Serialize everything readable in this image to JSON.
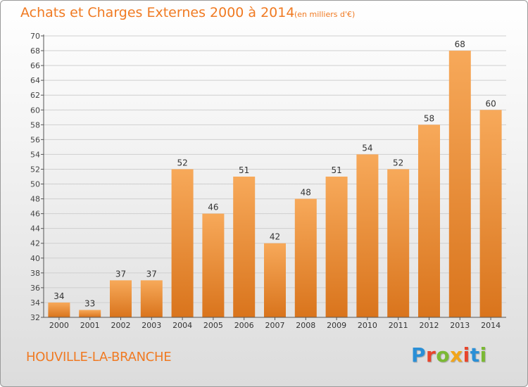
{
  "header": {
    "title": "Achats et Charges Externes 2000 à 2014",
    "subtitle": "(en milliers d'€)"
  },
  "footer": {
    "commune": "HOUVILLE-LA-BRANCHE",
    "logo": {
      "text": "Proxiti",
      "letter_colors": [
        "#2a8fd6",
        "#e8452c",
        "#7bb934",
        "#f2a51a",
        "#e8452c",
        "#2a8fd6",
        "#7bb934"
      ]
    }
  },
  "colors": {
    "bar_light": "#f7a95a",
    "bar_dark": "#d9741c",
    "text_accent": "#f07a22",
    "grid": "#cfcfcf"
  },
  "chart_data": {
    "type": "bar",
    "categories": [
      "2000",
      "2001",
      "2002",
      "2003",
      "2004",
      "2005",
      "2006",
      "2007",
      "2008",
      "2009",
      "2010",
      "2011",
      "2012",
      "2013",
      "2014"
    ],
    "values": [
      34,
      33,
      37,
      37,
      52,
      46,
      51,
      42,
      48,
      51,
      54,
      52,
      58,
      68,
      60
    ],
    "ylim": [
      32,
      70
    ],
    "ytick_step": 2,
    "grid": true,
    "xlabel": "",
    "ylabel": ""
  }
}
